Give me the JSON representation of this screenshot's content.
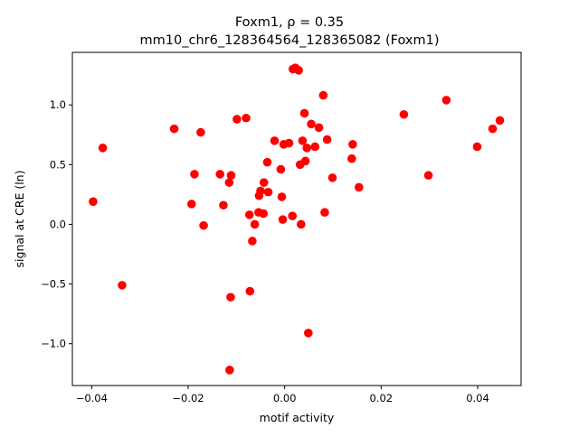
{
  "chart_data": {
    "type": "scatter",
    "title_line1": "Foxm1, ρ = 0.35",
    "title_line2": "mm10_chr6_128364564_128365082 (Foxm1)",
    "xlabel": "motif activity",
    "ylabel": "signal at CRE (ln)",
    "xlim": [
      -0.044,
      0.049
    ],
    "ylim": [
      -1.35,
      1.44
    ],
    "xticks": [
      -0.04,
      -0.02,
      0.0,
      0.02,
      0.04
    ],
    "xtick_labels": [
      "−0.04",
      "−0.02",
      "0.00",
      "0.02",
      "0.04"
    ],
    "yticks": [
      -1.0,
      -0.5,
      0.0,
      0.5,
      1.0
    ],
    "ytick_labels": [
      "−1.0",
      "−0.5",
      "0.0",
      "0.5",
      "1.0"
    ],
    "grid": false,
    "marker_color": "#ff0000",
    "points": [
      {
        "x": -0.0397,
        "y": 0.19
      },
      {
        "x": -0.0377,
        "y": 0.64
      },
      {
        "x": -0.0337,
        "y": -0.51
      },
      {
        "x": -0.0229,
        "y": 0.8
      },
      {
        "x": -0.0193,
        "y": 0.17
      },
      {
        "x": -0.0187,
        "y": 0.42
      },
      {
        "x": -0.0174,
        "y": 0.77
      },
      {
        "x": -0.0168,
        "y": -0.01
      },
      {
        "x": -0.0134,
        "y": 0.42
      },
      {
        "x": -0.0127,
        "y": 0.16
      },
      {
        "x": -0.0115,
        "y": 0.35
      },
      {
        "x": -0.0111,
        "y": 0.41
      },
      {
        "x": -0.0112,
        "y": -0.61
      },
      {
        "x": -0.0114,
        "y": -1.22
      },
      {
        "x": -0.0099,
        "y": 0.88
      },
      {
        "x": -0.008,
        "y": 0.89
      },
      {
        "x": -0.0073,
        "y": 0.08
      },
      {
        "x": -0.0072,
        "y": -0.56
      },
      {
        "x": -0.0067,
        "y": -0.14
      },
      {
        "x": -0.0062,
        "y": 0.0
      },
      {
        "x": -0.0054,
        "y": 0.1
      },
      {
        "x": -0.0053,
        "y": 0.24
      },
      {
        "x": -0.005,
        "y": 0.28
      },
      {
        "x": -0.0043,
        "y": 0.35
      },
      {
        "x": -0.0044,
        "y": 0.09
      },
      {
        "x": -0.0036,
        "y": 0.52
      },
      {
        "x": -0.0034,
        "y": 0.27
      },
      {
        "x": -0.0021,
        "y": 0.7
      },
      {
        "x": -0.0008,
        "y": 0.46
      },
      {
        "x": -0.0006,
        "y": 0.23
      },
      {
        "x": -0.0004,
        "y": 0.04
      },
      {
        "x": -0.0002,
        "y": 0.67
      },
      {
        "x": 0.0009,
        "y": 0.68
      },
      {
        "x": 0.0016,
        "y": 0.07
      },
      {
        "x": 0.0017,
        "y": 1.3
      },
      {
        "x": 0.0022,
        "y": 1.31
      },
      {
        "x": 0.0029,
        "y": 1.29
      },
      {
        "x": 0.0032,
        "y": 0.5
      },
      {
        "x": 0.0034,
        "y": 0.0
      },
      {
        "x": 0.0037,
        "y": 0.7
      },
      {
        "x": 0.0041,
        "y": 0.93
      },
      {
        "x": 0.0043,
        "y": 0.53
      },
      {
        "x": 0.0046,
        "y": 0.64
      },
      {
        "x": 0.0049,
        "y": -0.91
      },
      {
        "x": 0.0055,
        "y": 0.84
      },
      {
        "x": 0.0063,
        "y": 0.65
      },
      {
        "x": 0.0071,
        "y": 0.81
      },
      {
        "x": 0.008,
        "y": 1.08
      },
      {
        "x": 0.0083,
        "y": 0.1
      },
      {
        "x": 0.0088,
        "y": 0.71
      },
      {
        "x": 0.0099,
        "y": 0.39
      },
      {
        "x": 0.0139,
        "y": 0.55
      },
      {
        "x": 0.0141,
        "y": 0.67
      },
      {
        "x": 0.0154,
        "y": 0.31
      },
      {
        "x": 0.0247,
        "y": 0.92
      },
      {
        "x": 0.0298,
        "y": 0.41
      },
      {
        "x": 0.0335,
        "y": 1.04
      },
      {
        "x": 0.0399,
        "y": 0.65
      },
      {
        "x": 0.0431,
        "y": 0.8
      },
      {
        "x": 0.0446,
        "y": 0.87
      }
    ]
  }
}
